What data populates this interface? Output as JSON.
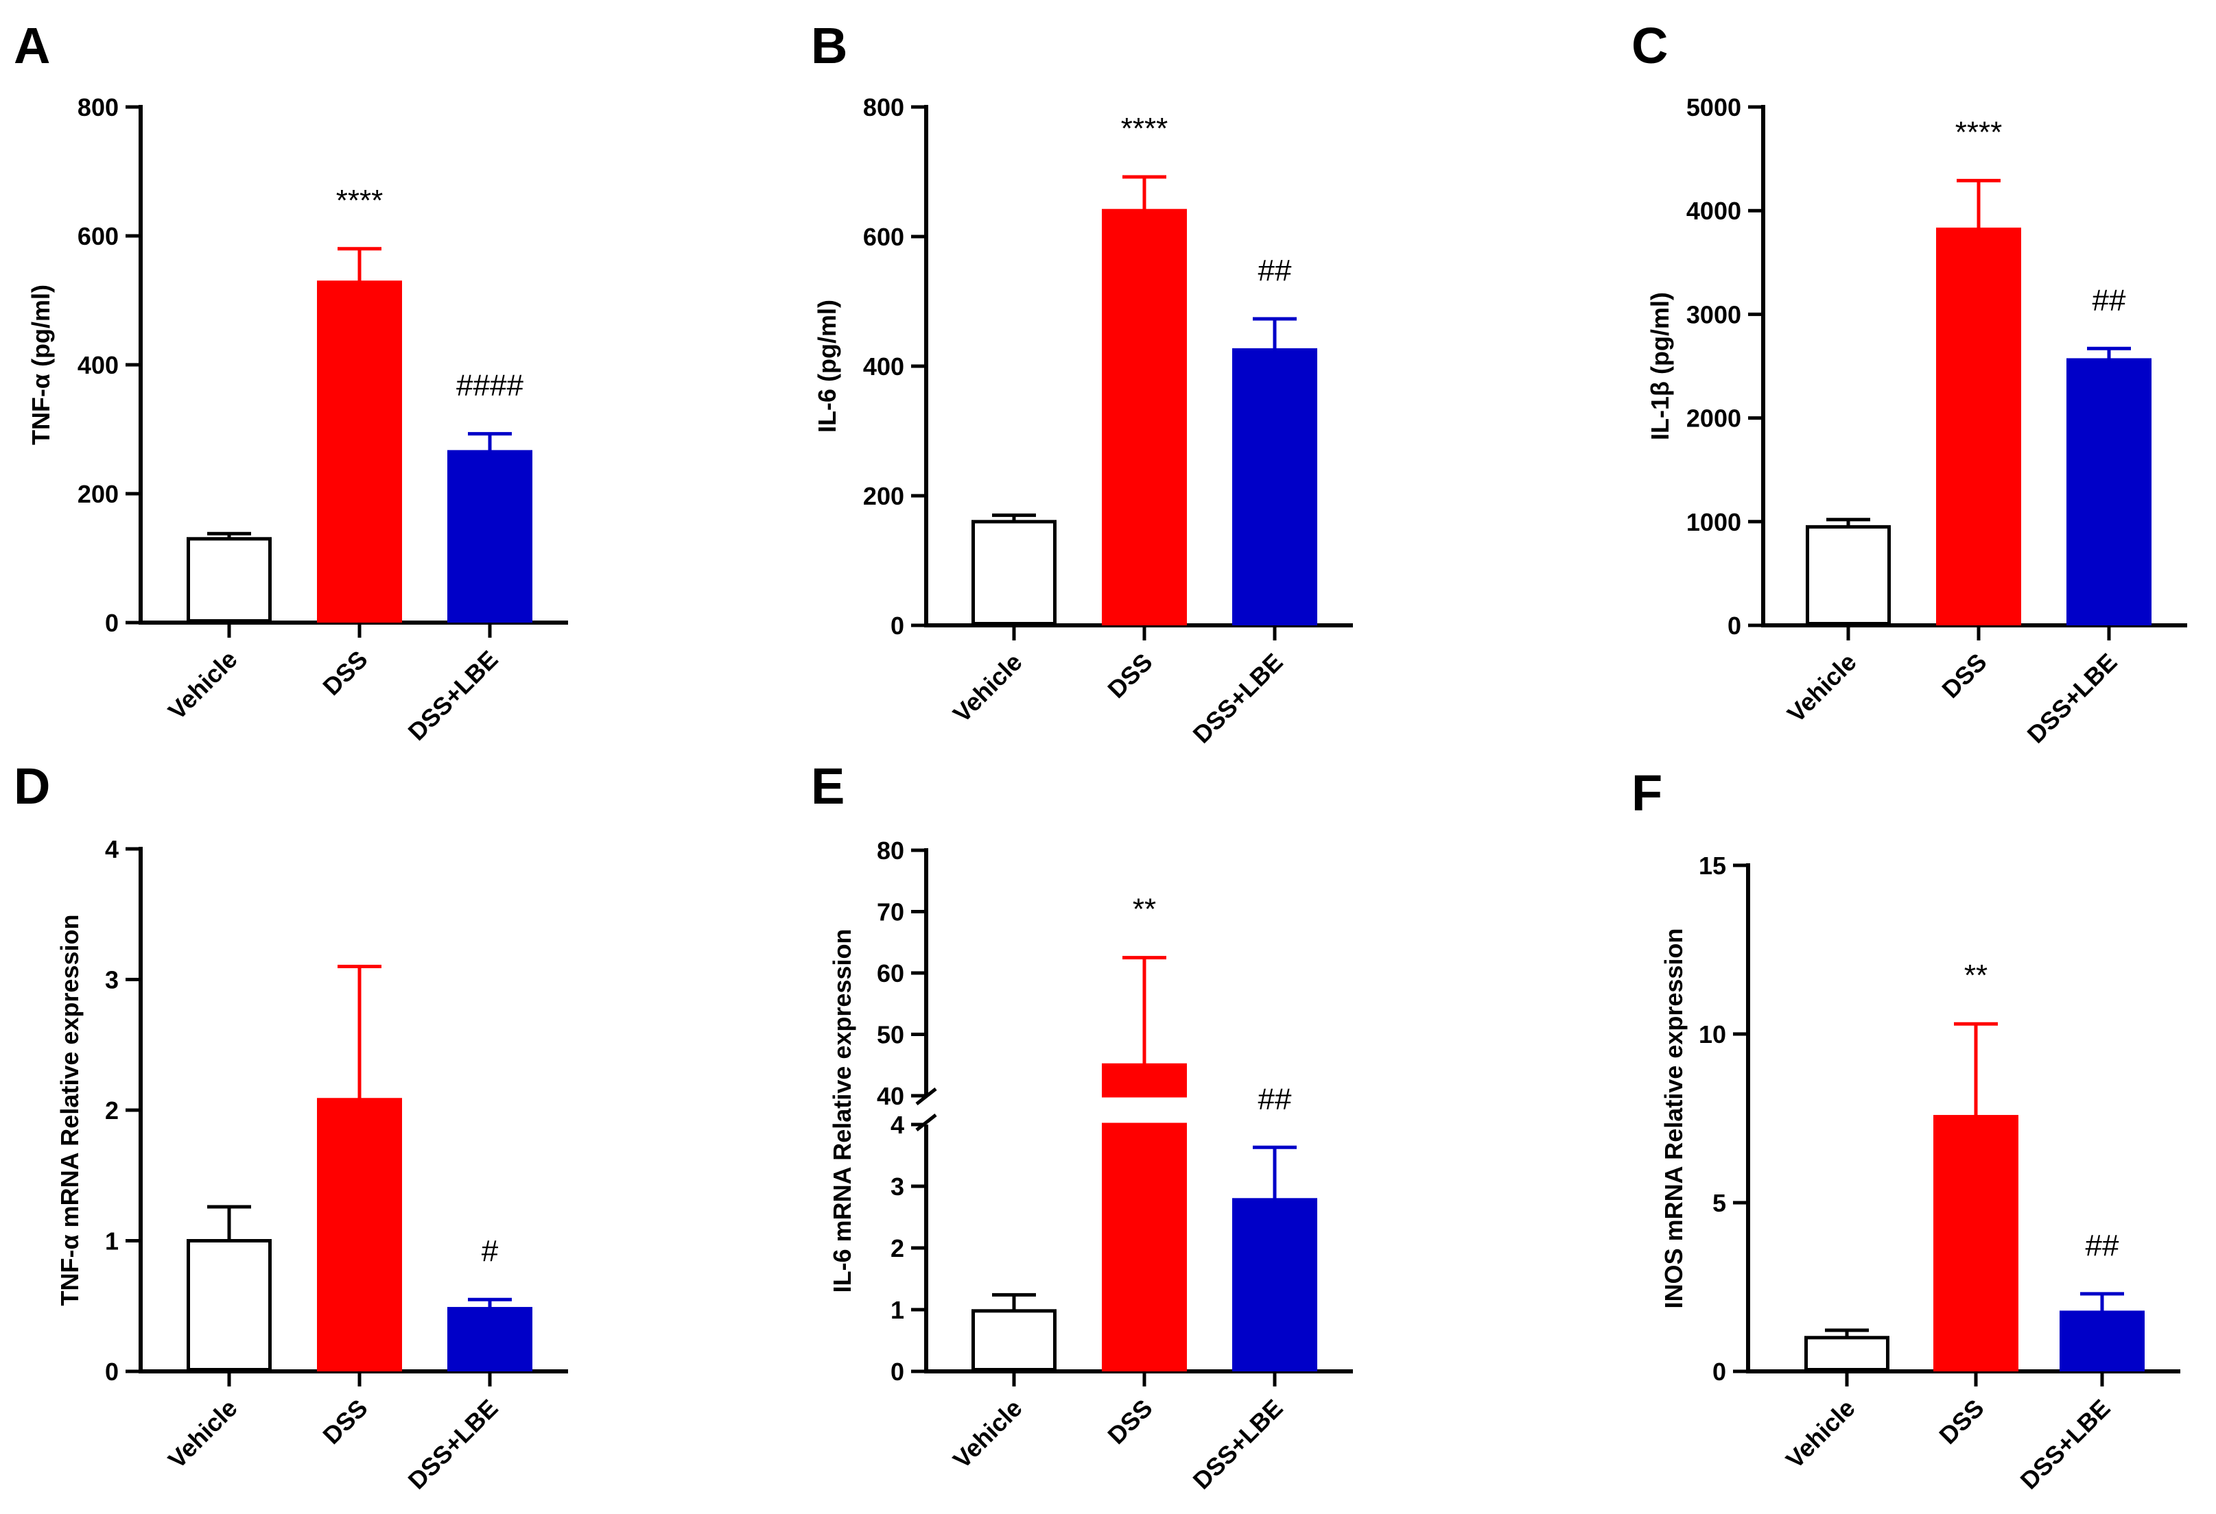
{
  "figure": {
    "background": "#ffffff"
  },
  "colors": {
    "Vehicle": "#ffffff",
    "DSS": "#ff0000",
    "DSS+LBE": "#0000c8",
    "axis": "#000000"
  },
  "chart_data": [
    {
      "panel": "A",
      "type": "bar",
      "ylabel": "TNF-α (pg/ml)",
      "categories": [
        "Vehicle",
        "DSS",
        "DSS+LBE"
      ],
      "values": [
        130,
        528,
        265
      ],
      "errors": [
        8,
        52,
        28
      ],
      "ylim": [
        0,
        800
      ],
      "yticks": [
        0,
        200,
        400,
        600,
        800
      ],
      "ytick_labels": [
        "0",
        "200",
        "400",
        "600",
        "800"
      ],
      "significance": [
        "",
        "****",
        "####"
      ]
    },
    {
      "panel": "B",
      "type": "bar",
      "ylabel": "IL-6 (pg/ml)",
      "categories": [
        "Vehicle",
        "DSS",
        "DSS+LBE"
      ],
      "values": [
        160,
        640,
        425
      ],
      "errors": [
        10,
        52,
        48
      ],
      "ylim": [
        0,
        800
      ],
      "yticks": [
        0,
        200,
        400,
        600,
        800
      ],
      "ytick_labels": [
        "0",
        "200",
        "400",
        "600",
        "800"
      ],
      "significance": [
        "",
        "****",
        "##"
      ]
    },
    {
      "panel": "C",
      "type": "bar",
      "ylabel": "IL-1β (pg/ml)",
      "categories": [
        "Vehicle",
        "DSS",
        "DSS+LBE"
      ],
      "values": [
        950,
        3820,
        2560
      ],
      "errors": [
        70,
        470,
        110
      ],
      "ylim": [
        0,
        5000
      ],
      "yticks": [
        0,
        1000,
        2000,
        3000,
        4000,
        5000
      ],
      "ytick_labels": [
        "0",
        "1000",
        "2000",
        "3000",
        "4000",
        "5000"
      ],
      "significance": [
        "",
        "****",
        "##"
      ]
    },
    {
      "panel": "D",
      "type": "bar",
      "ylabel": "TNF-α mRNA Relative expression",
      "categories": [
        "Vehicle",
        "DSS",
        "DSS+LBE"
      ],
      "values": [
        1.0,
        2.08,
        0.48
      ],
      "errors": [
        0.26,
        1.02,
        0.07
      ],
      "ylim": [
        0,
        4
      ],
      "yticks": [
        0,
        1,
        2,
        3,
        4
      ],
      "ytick_labels": [
        "0",
        "1",
        "2",
        "3",
        "4"
      ],
      "significance": [
        "",
        "",
        "#"
      ]
    },
    {
      "panel": "E",
      "type": "bar",
      "ylabel": "IL-6 mRNA Relative expression",
      "categories": [
        "Vehicle",
        "DSS",
        "DSS+LBE"
      ],
      "values": [
        0.98,
        45,
        2.78
      ],
      "errors": [
        0.26,
        17.5,
        0.85
      ],
      "axis_break": {
        "lower": [
          0,
          4
        ],
        "upper": [
          40,
          80
        ]
      },
      "yticks": [
        0,
        1,
        2,
        3,
        4,
        40,
        50,
        60,
        70,
        80
      ],
      "ytick_labels": [
        "0",
        "1",
        "2",
        "3",
        "4",
        "40",
        "50",
        "60",
        "70",
        "80"
      ],
      "significance": [
        "",
        "**",
        "##"
      ]
    },
    {
      "panel": "F",
      "type": "bar",
      "ylabel": "INOS mRNA Relative expression",
      "categories": [
        "Vehicle",
        "DSS",
        "DSS+LBE"
      ],
      "values": [
        1.0,
        7.55,
        1.75
      ],
      "errors": [
        0.22,
        2.75,
        0.55
      ],
      "ylim": [
        0,
        15
      ],
      "yticks": [
        0,
        5,
        10,
        15
      ],
      "ytick_labels": [
        "0",
        "5",
        "10",
        "15"
      ],
      "significance": [
        "",
        "**",
        "##"
      ]
    }
  ]
}
